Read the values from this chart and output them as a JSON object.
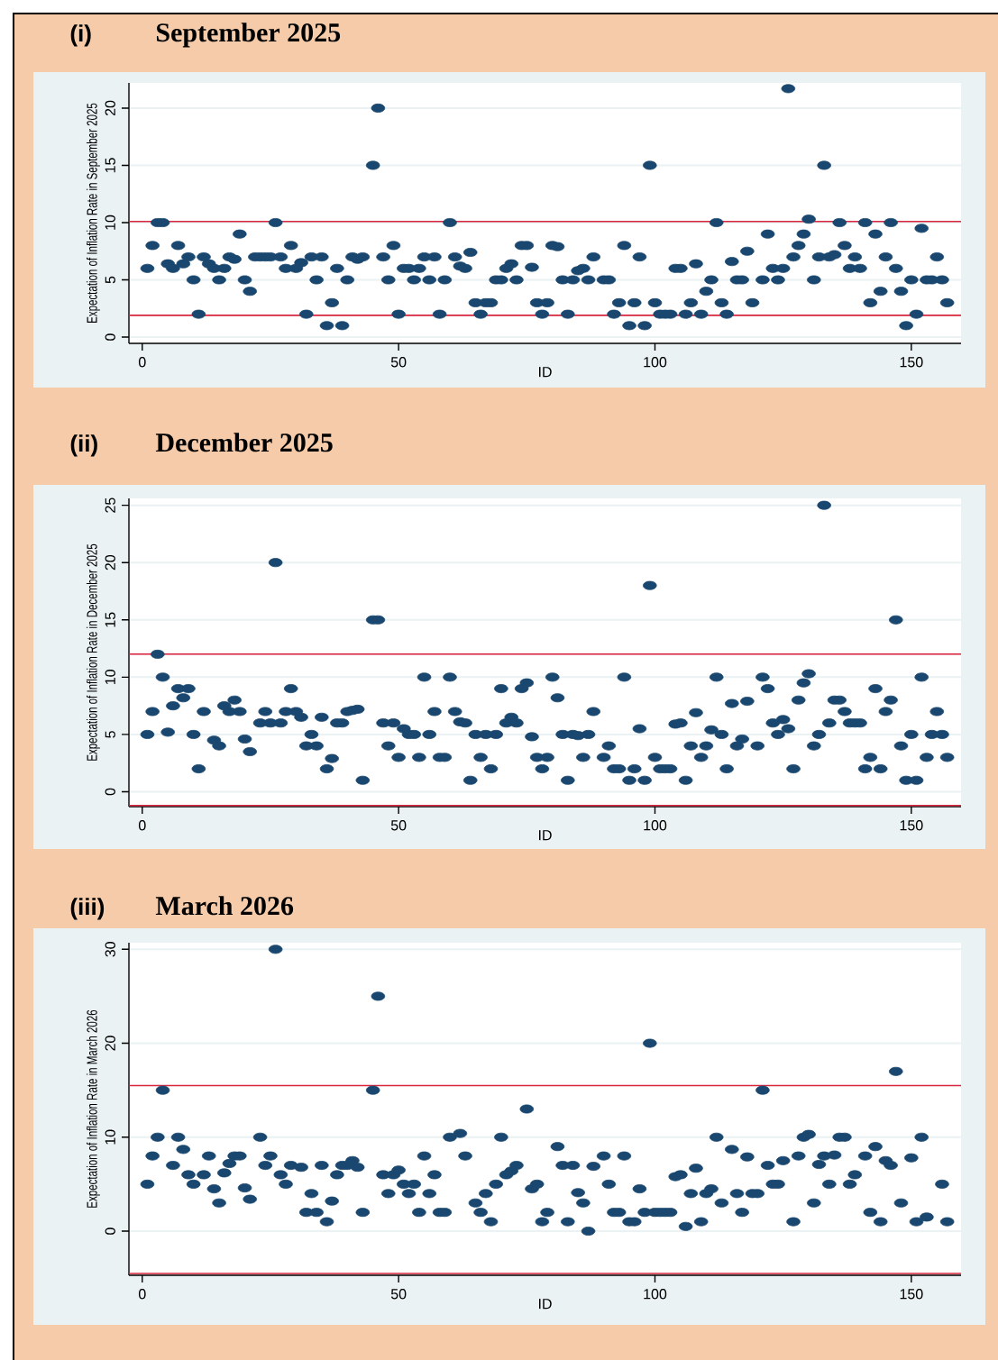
{
  "chart_data": [
    {
      "type": "scatter",
      "subtitle": "(i)",
      "title": "September 2025",
      "xlabel": "ID",
      "ylabel": "Expectation of Inflation Rate in September 2025",
      "color": "#1a476f",
      "marker": "circle",
      "grid": "y",
      "xlim": [
        -2.6,
        159.7
      ],
      "xticks": [
        0,
        50,
        100,
        150
      ],
      "ylim": [
        -0.55,
        22.2
      ],
      "yticks": [
        0,
        5,
        10,
        15,
        20
      ],
      "ref_lines": [
        {
          "axis": "y",
          "value": 10.1,
          "color": "#d7263d"
        },
        {
          "axis": "y",
          "value": 1.9,
          "color": "#d7263d"
        }
      ],
      "x": [
        1,
        2,
        3,
        4,
        5,
        6,
        7,
        8,
        9,
        10,
        11,
        12,
        13,
        14,
        15,
        16,
        17,
        18,
        19,
        20,
        21,
        22,
        23,
        24,
        25,
        26,
        27,
        28,
        29,
        30,
        31,
        32,
        33,
        34,
        35,
        36,
        37,
        38,
        39,
        40,
        41,
        42,
        43,
        45,
        46,
        47,
        48,
        49,
        50,
        51,
        52,
        53,
        54,
        55,
        56,
        57,
        58,
        59,
        60,
        61,
        62,
        63,
        64,
        65,
        66,
        67,
        68,
        69,
        70,
        71,
        72,
        73,
        74,
        75,
        76,
        77,
        78,
        79,
        80,
        81,
        82,
        83,
        84,
        85,
        86,
        87,
        88,
        90,
        91,
        92,
        93,
        94,
        95,
        96,
        97,
        98,
        99,
        100,
        101,
        102,
        103,
        104,
        105,
        106,
        107,
        108,
        109,
        110,
        111,
        112,
        113,
        114,
        115,
        116,
        117,
        118,
        119,
        121,
        122,
        123,
        124,
        125,
        126,
        127,
        128,
        129,
        130,
        131,
        132,
        133,
        134,
        135,
        136,
        137,
        138,
        139,
        140,
        141,
        142,
        143,
        144,
        145,
        146,
        147,
        148,
        149,
        150,
        151,
        152,
        153,
        154,
        155,
        156,
        157
      ],
      "values": [
        6,
        8,
        10,
        10,
        6.4,
        6,
        8,
        6.4,
        7,
        5,
        2,
        7,
        6.4,
        6,
        5,
        6,
        7,
        6.8,
        9,
        5,
        4,
        7,
        7,
        7,
        7,
        10,
        7,
        6,
        8,
        6,
        6.5,
        2,
        7,
        5,
        7,
        1,
        3,
        6,
        1,
        5,
        7,
        6.8,
        7,
        15,
        20,
        7,
        5,
        8,
        2,
        6,
        6,
        5,
        6,
        7,
        5,
        7,
        2,
        5,
        10,
        7,
        6.2,
        6,
        7.4,
        3,
        2,
        3,
        3,
        5,
        5,
        6,
        6.4,
        5,
        8,
        8,
        6.1,
        3,
        2,
        3,
        8,
        7.9,
        5,
        2,
        5,
        5.8,
        6,
        5,
        7,
        5,
        5,
        2,
        3,
        8,
        1,
        3,
        7,
        1,
        15,
        3,
        2,
        2,
        2,
        6,
        6,
        2,
        3,
        6.4,
        2,
        4,
        5,
        10,
        3,
        2,
        6.6,
        5,
        5,
        7.5,
        3,
        5,
        9,
        6,
        5,
        6,
        21.7,
        7,
        8,
        9,
        10.3,
        5,
        7,
        15,
        7,
        7.2,
        10,
        8,
        6,
        7,
        6,
        10,
        3,
        9,
        4,
        7,
        10,
        6,
        4,
        1,
        5,
        2,
        9.5,
        5,
        5,
        7,
        5,
        3
      ]
    },
    {
      "type": "scatter",
      "subtitle": "(ii)",
      "title": "December 2025",
      "xlabel": "ID",
      "ylabel": "Expectation of Inflation Rate in December 2025",
      "color": "#1a476f",
      "marker": "circle",
      "grid": "y",
      "xlim": [
        -2.6,
        159.7
      ],
      "xticks": [
        0,
        50,
        100,
        150
      ],
      "ylim": [
        -1.3,
        25.6
      ],
      "yticks": [
        0,
        5,
        10,
        15,
        20,
        25
      ],
      "ref_lines": [
        {
          "axis": "y",
          "value": 12,
          "color": "#d7263d"
        },
        {
          "axis": "y",
          "value": -1.2,
          "color": "#d7263d"
        }
      ],
      "x": [
        1,
        2,
        3,
        4,
        5,
        6,
        7,
        8,
        9,
        10,
        11,
        12,
        14,
        15,
        16,
        17,
        18,
        19,
        20,
        21,
        23,
        24,
        25,
        26,
        27,
        28,
        29,
        30,
        31,
        32,
        33,
        34,
        35,
        36,
        37,
        38,
        39,
        40,
        41,
        42,
        43,
        45,
        46,
        47,
        48,
        49,
        50,
        51,
        52,
        53,
        54,
        55,
        56,
        57,
        58,
        59,
        60,
        61,
        62,
        63,
        64,
        65,
        66,
        67,
        68,
        69,
        70,
        71,
        72,
        73,
        74,
        75,
        76,
        77,
        78,
        79,
        80,
        81,
        82,
        83,
        84,
        85,
        86,
        87,
        88,
        90,
        91,
        92,
        93,
        94,
        95,
        96,
        97,
        98,
        99,
        100,
        101,
        102,
        103,
        104,
        105,
        106,
        107,
        108,
        109,
        110,
        111,
        112,
        113,
        114,
        115,
        116,
        117,
        118,
        120,
        121,
        122,
        123,
        124,
        125,
        126,
        127,
        128,
        129,
        130,
        131,
        132,
        133,
        134,
        135,
        136,
        137,
        138,
        139,
        140,
        141,
        142,
        143,
        144,
        145,
        146,
        147,
        148,
        149,
        150,
        151,
        152,
        153,
        154,
        155,
        156,
        157
      ],
      "values": [
        5,
        7,
        12,
        10,
        5.2,
        7.5,
        9,
        8.2,
        9,
        5,
        2,
        7,
        4.5,
        4,
        7.5,
        7,
        8,
        7,
        4.6,
        3.5,
        6,
        7,
        6,
        20,
        6,
        7,
        9,
        7,
        6.5,
        4,
        5,
        4,
        6.5,
        2,
        2.9,
        6,
        6,
        7,
        7.1,
        7.2,
        1,
        15,
        15,
        6,
        4,
        6,
        3,
        5.5,
        5,
        5,
        3,
        10,
        5,
        7,
        3,
        3,
        10,
        7,
        6.1,
        6,
        1,
        5,
        3,
        5,
        2,
        5,
        9,
        6,
        6.5,
        6,
        9,
        9.5,
        4.8,
        3,
        2,
        3,
        10,
        8.2,
        5,
        1,
        5,
        4.9,
        3,
        5,
        7,
        3,
        4,
        2,
        2,
        10,
        1,
        2,
        5.5,
        1,
        18,
        3,
        2,
        2,
        2,
        5.9,
        6,
        1,
        4,
        6.9,
        3,
        4,
        5.4,
        10,
        5,
        2,
        7.7,
        4,
        4.6,
        7.9,
        4,
        10,
        9,
        6,
        5,
        6.3,
        5.5,
        2,
        8,
        9.5,
        10.3,
        4,
        5,
        25,
        6,
        8,
        8,
        7,
        6,
        6,
        6,
        2,
        3,
        9,
        2,
        7,
        8,
        15,
        4,
        1,
        5,
        1,
        10,
        3,
        5,
        7,
        5,
        3
      ]
    },
    {
      "type": "scatter",
      "subtitle": "(iii)",
      "title": "March 2026",
      "xlabel": "ID",
      "ylabel": "Expectation of Inflation Rate in March 2026",
      "color": "#1a476f",
      "marker": "circle",
      "grid": "y",
      "xlim": [
        -2.6,
        159.7
      ],
      "xticks": [
        0,
        50,
        100,
        150
      ],
      "ylim": [
        -4.7,
        30.7
      ],
      "yticks": [
        0,
        10,
        20,
        30
      ],
      "ref_lines": [
        {
          "axis": "y",
          "value": 15.5,
          "color": "#d7263d"
        },
        {
          "axis": "y",
          "value": -4.5,
          "color": "#d7263d"
        }
      ],
      "x": [
        1,
        2,
        3,
        4,
        6,
        7,
        8,
        9,
        10,
        12,
        13,
        14,
        15,
        16,
        17,
        18,
        19,
        20,
        21,
        23,
        24,
        25,
        26,
        27,
        28,
        29,
        31,
        32,
        33,
        34,
        35,
        36,
        37,
        38,
        39,
        40,
        41,
        42,
        43,
        45,
        46,
        47,
        48,
        49,
        50,
        51,
        52,
        53,
        54,
        55,
        56,
        57,
        58,
        59,
        60,
        62,
        63,
        65,
        66,
        67,
        68,
        69,
        70,
        71,
        72,
        73,
        75,
        76,
        77,
        78,
        79,
        81,
        82,
        83,
        84,
        85,
        86,
        87,
        88,
        90,
        91,
        92,
        93,
        94,
        95,
        96,
        97,
        98,
        99,
        100,
        101,
        102,
        103,
        104,
        105,
        106,
        107,
        108,
        109,
        110,
        111,
        112,
        113,
        115,
        116,
        117,
        118,
        119,
        120,
        121,
        122,
        123,
        124,
        125,
        127,
        128,
        129,
        130,
        131,
        132,
        133,
        134,
        135,
        136,
        137,
        138,
        139,
        141,
        142,
        143,
        144,
        145,
        146,
        147,
        148,
        150,
        151,
        152,
        153,
        156,
        157
      ],
      "values": [
        5,
        8,
        10,
        15,
        7,
        10,
        8.7,
        6,
        5,
        6,
        8,
        4.5,
        3,
        6.2,
        7.2,
        8,
        8,
        4.6,
        3.4,
        10,
        7,
        8,
        30,
        6,
        5,
        7,
        6.8,
        2,
        4,
        2,
        7,
        1,
        3.2,
        6,
        7,
        7,
        7.5,
        6.8,
        2,
        15,
        25,
        6,
        4,
        6,
        6.5,
        5,
        4,
        5,
        2,
        8,
        4,
        6,
        2,
        2,
        10,
        10.4,
        8,
        3,
        2,
        4,
        1,
        5,
        10,
        6,
        6.4,
        7,
        13,
        4.5,
        5,
        1,
        2,
        9,
        7,
        1,
        7,
        4.1,
        3,
        0,
        6.9,
        8,
        5,
        2,
        2,
        8,
        1,
        1,
        4.5,
        2,
        20,
        2,
        2,
        2,
        2,
        5.8,
        6,
        0.5,
        4,
        6.7,
        1,
        4,
        4.5,
        10,
        3,
        8.7,
        4,
        2,
        7.9,
        4,
        4,
        15,
        7,
        5,
        5,
        7.5,
        1,
        8,
        10,
        10.3,
        3,
        7.1,
        8,
        5,
        8.1,
        10,
        10,
        5,
        6,
        8,
        2,
        9,
        1,
        7.5,
        7,
        17,
        3,
        7.8,
        1,
        10,
        1.5,
        5,
        1
      ]
    }
  ]
}
